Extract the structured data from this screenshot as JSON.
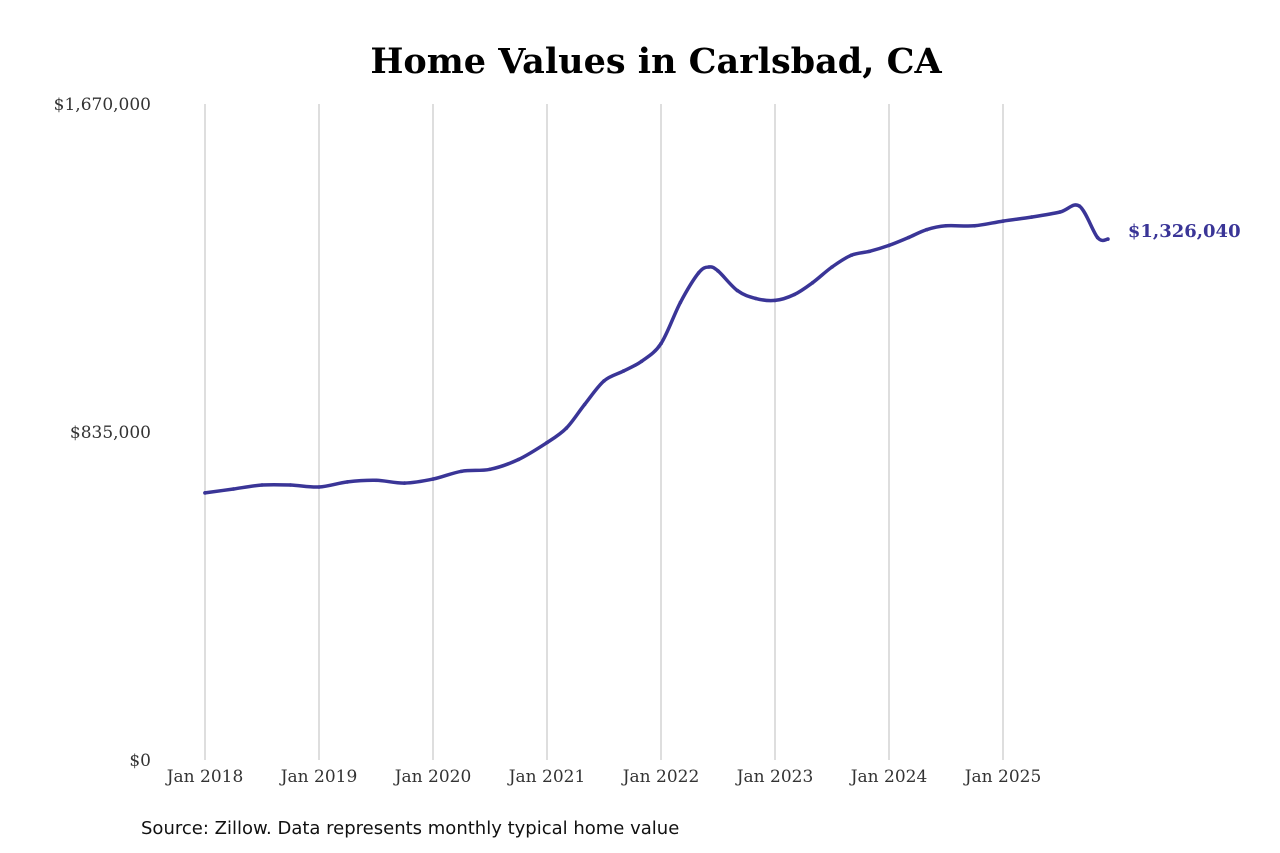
{
  "chart_data": {
    "type": "line",
    "title": "Home Values in Carlsbad, CA",
    "xlabel": "",
    "ylabel": "",
    "ylim": [
      0,
      1670000
    ],
    "y_ticks": [
      {
        "value": 0,
        "label": "$0"
      },
      {
        "value": 835000,
        "label": "$835,000"
      },
      {
        "value": 1670000,
        "label": "$1,670,000"
      }
    ],
    "x_ticks": [
      {
        "value": 2018,
        "label": "Jan 2018"
      },
      {
        "value": 2019,
        "label": "Jan 2019"
      },
      {
        "value": 2020,
        "label": "Jan 2020"
      },
      {
        "value": 2021,
        "label": "Jan 2021"
      },
      {
        "value": 2022,
        "label": "Jan 2022"
      },
      {
        "value": 2023,
        "label": "Jan 2023"
      },
      {
        "value": 2024,
        "label": "Jan 2024"
      },
      {
        "value": 2025,
        "label": "Jan 2025"
      }
    ],
    "grid": "vertical",
    "series": [
      {
        "color": "#3a3597",
        "x": [
          2018.0,
          2018.25,
          2018.5,
          2018.75,
          2019.0,
          2019.25,
          2019.5,
          2019.75,
          2020.0,
          2020.25,
          2020.5,
          2020.75,
          2021.0,
          2021.17,
          2021.33,
          2021.5,
          2021.67,
          2021.83,
          2022.0,
          2022.17,
          2022.33,
          2022.42,
          2022.5,
          2022.67,
          2022.83,
          2023.0,
          2023.17,
          2023.33,
          2023.5,
          2023.67,
          2023.83,
          2024.0,
          2024.17,
          2024.33,
          2024.5,
          2024.75,
          2025.0,
          2025.25,
          2025.5,
          2025.67,
          2025.83,
          2025.92
        ],
        "y": [
          680000,
          690000,
          700000,
          700000,
          695000,
          708000,
          712000,
          705000,
          715000,
          735000,
          740000,
          765000,
          808000,
          845000,
          905000,
          965000,
          990000,
          1015000,
          1060000,
          1165000,
          1240000,
          1255000,
          1245000,
          1195000,
          1175000,
          1170000,
          1185000,
          1215000,
          1255000,
          1285000,
          1295000,
          1310000,
          1330000,
          1350000,
          1360000,
          1360000,
          1372000,
          1382000,
          1395000,
          1410000,
          1330000,
          1326040
        ]
      }
    ],
    "end_label": {
      "text": "$1,326,040",
      "x": 2025.92,
      "y": 1326040,
      "color": "#3a3597"
    },
    "source_note": "Source: Zillow. Data represents monthly typical home value"
  }
}
